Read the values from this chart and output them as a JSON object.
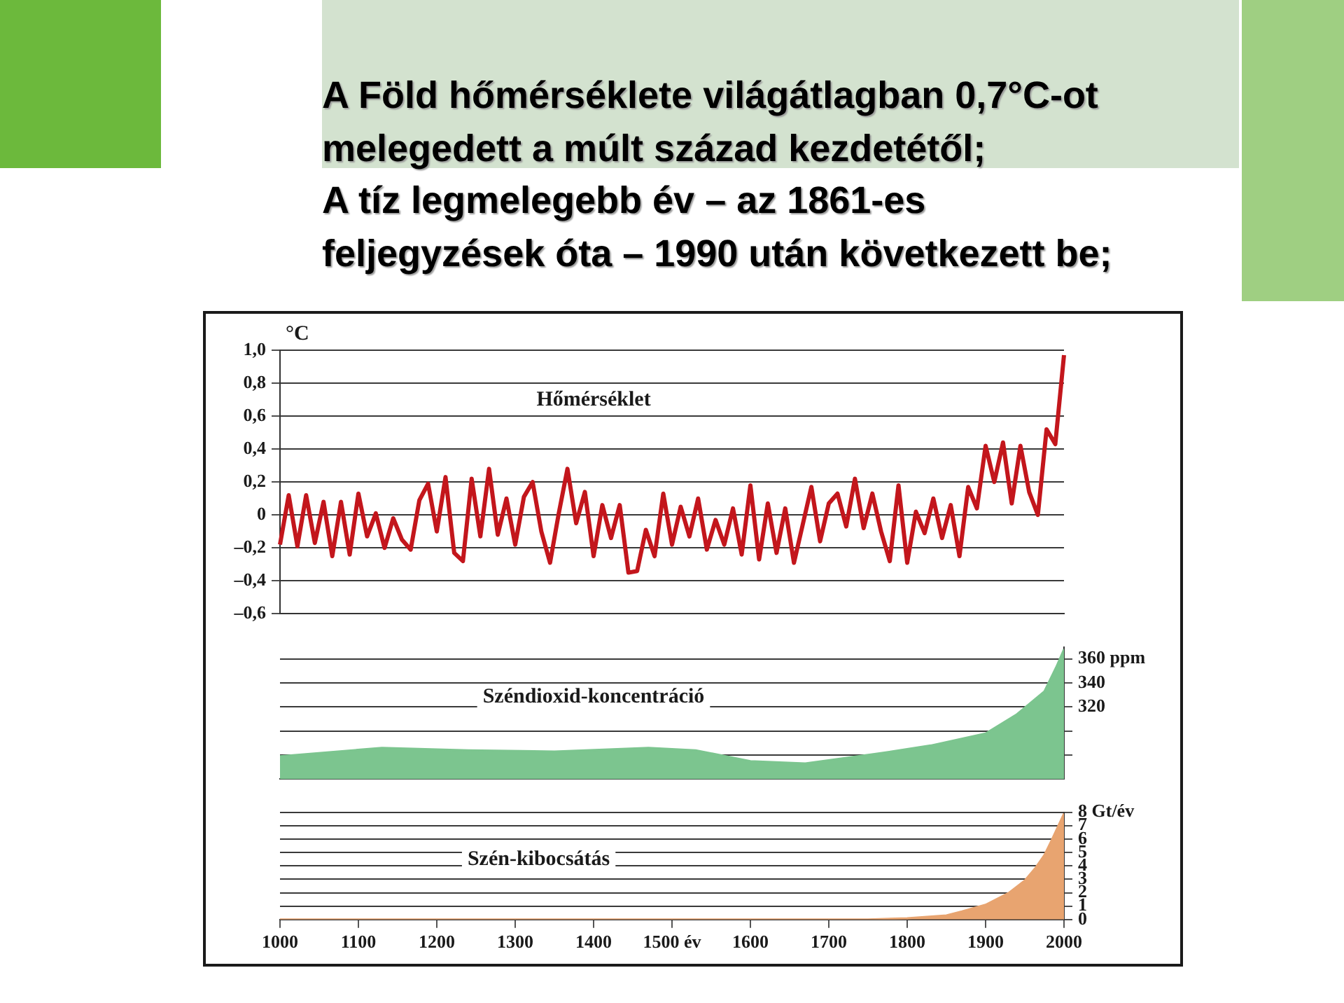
{
  "chart_data": [
    {
      "type": "line",
      "title": "A Föld hőmérséklete világátlagban 0,7°C-ot\nmelegedett a múlt század kezdetétől;\nA tíz legmelegebb év – az 1861-es\nfeljegyzések óta – 1990 után következett be;",
      "ylabel": "°C",
      "categories": [
        null,
        null,
        null,
        null,
        null,
        null,
        null,
        null,
        null,
        null,
        null,
        null,
        null,
        null,
        null,
        null,
        null,
        null,
        null,
        null,
        null,
        null,
        null,
        null,
        null,
        null,
        null,
        null,
        null,
        null,
        null,
        null,
        null,
        null,
        null,
        null,
        null,
        null,
        null,
        null,
        null,
        null,
        null,
        null,
        null,
        null,
        null,
        null,
        null,
        null,
        null,
        null,
        null,
        null,
        null,
        null,
        null,
        null,
        null,
        null,
        null,
        null,
        null,
        null,
        null,
        null,
        null,
        null,
        null,
        null,
        null,
        null,
        null,
        null,
        null,
        null,
        null,
        null,
        null,
        null,
        null,
        null,
        null,
        null,
        null,
        null,
        null,
        null,
        null,
        null,
        null
      ],
      "series": [
        {
          "name": "Hőmérséklet",
          "color": "#c3161c",
          "values": [
            -0.18,
            0.12,
            -0.19,
            0.12,
            -0.17,
            0.08,
            -0.25,
            0.08,
            -0.24,
            0.13,
            -0.13,
            0.01,
            -0.2,
            -0.02,
            -0.15,
            -0.21,
            0.09,
            0.19,
            -0.1,
            0.23,
            -0.23,
            -0.28,
            0.22,
            -0.13,
            0.28,
            -0.12,
            0.1,
            -0.18,
            0.11,
            0.2,
            -0.1,
            -0.29,
            0.01,
            0.28,
            -0.05,
            0.14,
            -0.25,
            0.06,
            -0.14,
            0.06,
            -0.35,
            -0.34,
            -0.09,
            -0.25,
            0.13,
            -0.18,
            0.05,
            -0.13,
            0.1,
            -0.21,
            -0.03,
            -0.18,
            0.04,
            -0.24,
            0.18,
            -0.27,
            0.07,
            -0.23,
            0.04,
            -0.29,
            -0.06,
            0.17,
            -0.16,
            0.07,
            0.13,
            -0.07,
            0.22,
            -0.08,
            0.13,
            -0.1,
            -0.28,
            0.18,
            -0.29,
            0.02,
            -0.11,
            0.1,
            -0.14,
            0.06,
            -0.25,
            0.17,
            0.04,
            0.42,
            0.2,
            0.44,
            0.07,
            0.42,
            0.14,
            0.0,
            0.52,
            0.43,
            0.97
          ]
        }
      ],
      "ylim": [
        -0.6,
        1.0
      ],
      "yticks": [
        {
          "value": -0.6,
          "label": "–0,6"
        },
        {
          "value": -0.4,
          "label": "–0,4"
        },
        {
          "value": -0.2,
          "label": "–0,2"
        },
        0,
        {
          "value": 0.2,
          "label": "0,2"
        },
        {
          "value": 0.4,
          "label": "0,4"
        },
        {
          "value": 0.6,
          "label": "0,6"
        },
        {
          "value": 0.8,
          "label": "0,8"
        },
        {
          "value": 1.0,
          "label": "1,0"
        }
      ],
      "grid": "y",
      "tick_labels": "y"
    },
    {
      "type": "area",
      "x": [
        1000,
        1130,
        1240,
        1350,
        1470,
        1530,
        1600,
        1670,
        1760,
        1830,
        1900,
        1940,
        1975,
        1990,
        2000
      ],
      "series": [
        {
          "name": "Széndioxid-koncentráció",
          "color": "#7cc58f",
          "values": [
            279,
            286,
            284,
            283,
            286,
            284,
            275,
            273,
            281,
            288,
            298,
            314,
            333,
            353,
            368
          ]
        }
      ],
      "xlim": [
        1000,
        2000
      ],
      "ylim": [
        260,
        370
      ],
      "yticks": [
        {
          "value": 280,
          "label": null
        },
        {
          "value": 300,
          "label": null
        },
        320,
        340,
        {
          "value": 360,
          "label": "360 ppm"
        }
      ],
      "grid": "y",
      "tick_labels": "y"
    },
    {
      "type": "area",
      "x": [
        1000,
        1700,
        1750,
        1800,
        1850,
        1870,
        1900,
        1930,
        1950,
        1963,
        1975,
        1985,
        2000
      ],
      "series": [
        {
          "name": "Szén-kibocsátás",
          "color": "#e8a470",
          "values": [
            0,
            0,
            0,
            0.1,
            0.3,
            0.6,
            1.1,
            2.0,
            2.9,
            3.8,
            4.8,
            6.0,
            7.9
          ]
        }
      ],
      "xlim": [
        1000,
        2000
      ],
      "xticks": [
        1000,
        1100,
        1200,
        1300,
        1400,
        {
          "value": 1500,
          "label": "1500 év"
        },
        1600,
        1700,
        1800,
        1900,
        2000
      ],
      "ylim": [
        0,
        8
      ],
      "yticks": [
        0,
        1,
        2,
        3,
        4,
        5,
        6,
        7,
        {
          "value": 8,
          "label": "8 Gt/év"
        }
      ],
      "grid": "y"
    }
  ]
}
